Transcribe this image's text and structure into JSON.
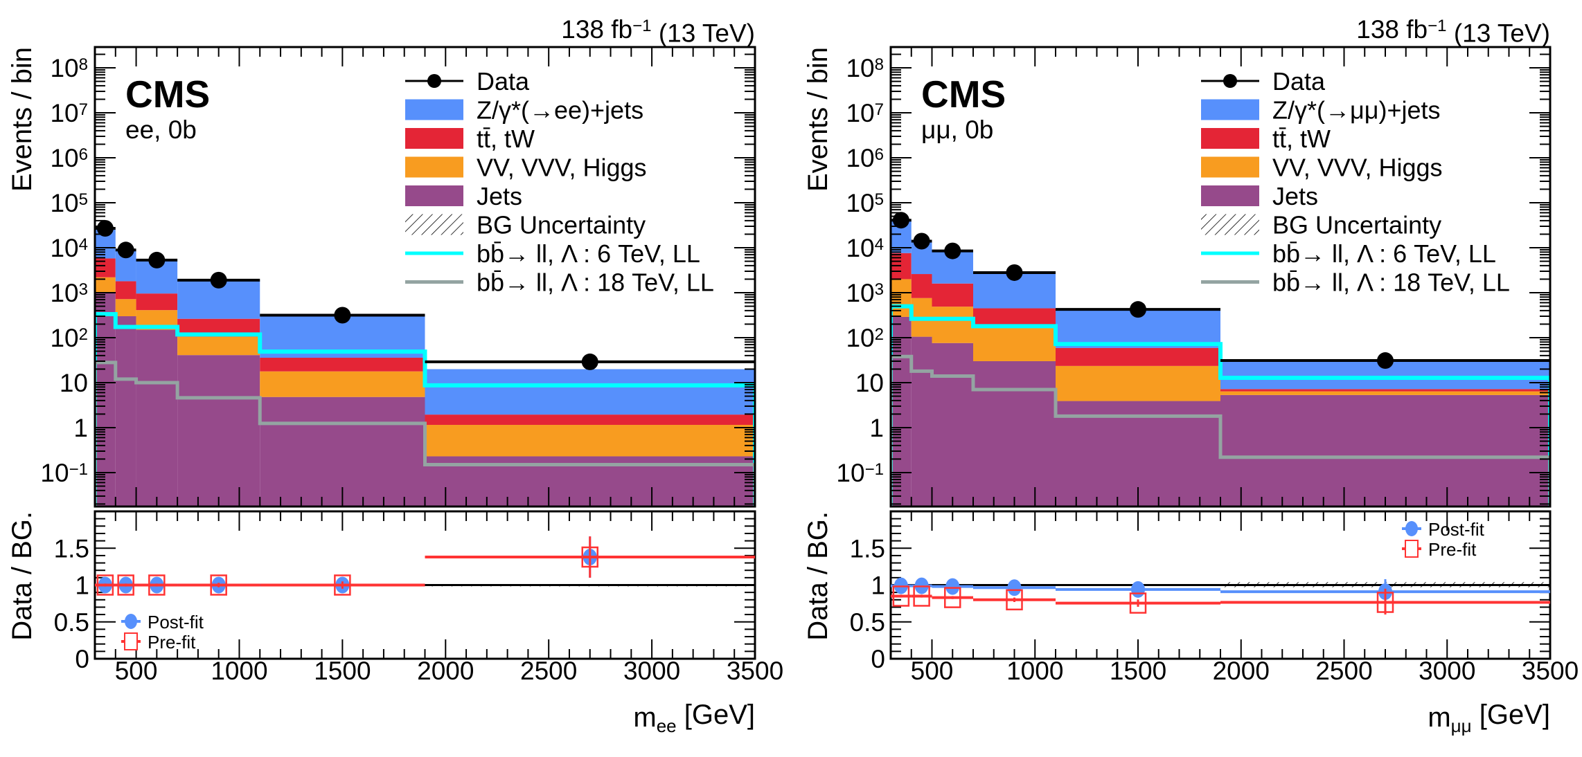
{
  "chart_data": [
    {
      "type": "bar",
      "stacked": true,
      "panel": "ee",
      "lumi_label": "138 fb^{−1} (13 TeV)",
      "experiment": "CMS",
      "channel_label": "ee, 0b",
      "xlabel": "m_{ee} [GeV]",
      "ylabel": "Events / bin",
      "yscale": "log",
      "xlim": [
        300,
        3500
      ],
      "ylim": [
        0.0176,
        290000000
      ],
      "xticks": [
        500,
        1000,
        1500,
        2000,
        2500,
        3000,
        3500
      ],
      "xtick_labels": [
        "500",
        "1000",
        "1500",
        "2000",
        "2500",
        "3000",
        "3500"
      ],
      "yticks": [
        0.1,
        1,
        10,
        100,
        1000,
        10000,
        100000,
        1000000,
        10000000,
        100000000
      ],
      "ytick_labels": [
        "10^{−1}",
        "1",
        "10",
        "10^{2}",
        "10^{3}",
        "10^{4}",
        "10^{5}",
        "10^{6}",
        "10^{7}",
        "10^{8}"
      ],
      "bin_edges": [
        300,
        400,
        500,
        700,
        1100,
        1900,
        3500
      ],
      "legend_position": "top-right",
      "series": [
        {
          "name": "Jets",
          "color": "#964a8b",
          "values": [
            1000,
            300,
            150,
            41,
            4.8,
            0.23
          ]
        },
        {
          "name": "VV, VVV, Higgs",
          "color": "#f89c20",
          "values": [
            1200,
            420,
            260,
            64,
            13,
            0.92
          ]
        },
        {
          "name": "tt̄, tW",
          "color": "#e42536",
          "values": [
            3600,
            1080,
            550,
            158,
            18,
            0.8
          ]
        },
        {
          "name": "Z/γ*(→ee)+jets",
          "color": "#5790fc",
          "values": [
            20200,
            6700,
            4540,
            1640,
            284,
            18
          ]
        }
      ],
      "data": {
        "name": "Data",
        "color": "#000000",
        "values": [
          27000,
          8900,
          5300,
          1900,
          316,
          29
        ]
      },
      "uncertainty": {
        "name": "BG Uncertainty"
      },
      "signals": [
        {
          "name": "bb̄→ ll,   Λ : 6 TeV, LL",
          "color": "#00ffff",
          "values": [
            333,
            173,
            173,
            118,
            49,
            8.7
          ]
        },
        {
          "name": "bb̄→ ll,   Λ : 18 TeV, LL",
          "color": "#94a4a2",
          "values": [
            28,
            12,
            10,
            4.6,
            1.24,
            0.15
          ]
        }
      ],
      "ratio": {
        "ylabel": "Data / BG.",
        "ylim": [
          0,
          2
        ],
        "yticks": [
          0,
          0.5,
          1,
          1.5
        ],
        "ytick_labels": [
          "0",
          "0.5",
          "1",
          "1.5"
        ],
        "legend_position": "bottom-left",
        "post_fit": {
          "name": "Post-fit",
          "color": "#5790fc",
          "values": [
            1.0,
            1.0,
            1.0,
            1.0,
            1.0,
            1.38
          ],
          "err_lo": [
            0.02,
            0.02,
            0.02,
            0.03,
            0.05,
            0.28
          ],
          "err_hi": [
            0.02,
            0.02,
            0.02,
            0.03,
            0.05,
            0.28
          ]
        },
        "pre_fit": {
          "name": "Pre-fit",
          "color": "#ff3333",
          "values": [
            1.0,
            1.0,
            1.0,
            1.0,
            1.0,
            1.38
          ],
          "err_lo": [
            0.02,
            0.02,
            0.02,
            0.03,
            0.05,
            0.28
          ],
          "err_hi": [
            0.02,
            0.02,
            0.02,
            0.03,
            0.05,
            0.28
          ]
        },
        "uncertainty_band": {
          "lo": [
            1,
            1,
            1,
            1,
            1,
            0.99
          ],
          "hi": [
            1,
            1,
            1,
            1,
            1,
            1.01
          ]
        }
      }
    },
    {
      "type": "bar",
      "stacked": true,
      "panel": "mumu",
      "lumi_label": "138 fb^{−1} (13 TeV)",
      "experiment": "CMS",
      "channel_label": "μμ, 0b",
      "xlabel": "m_{μμ} [GeV]",
      "ylabel": "Events / bin",
      "yscale": "log",
      "xlim": [
        300,
        3500
      ],
      "ylim": [
        0.0176,
        290000000
      ],
      "xticks": [
        500,
        1000,
        1500,
        2000,
        2500,
        3000,
        3500
      ],
      "xtick_labels": [
        "500",
        "1000",
        "1500",
        "2000",
        "2500",
        "3000",
        "3500"
      ],
      "yticks": [
        0.1,
        1,
        10,
        100,
        1000,
        10000,
        100000,
        1000000,
        10000000,
        100000000
      ],
      "ytick_labels": [
        "10^{−1}",
        "1",
        "10",
        "10^{2}",
        "10^{3}",
        "10^{4}",
        "10^{5}",
        "10^{6}",
        "10^{7}",
        "10^{8}"
      ],
      "bin_edges": [
        300,
        400,
        500,
        700,
        1100,
        1900,
        3500
      ],
      "legend_position": "top-right",
      "series": [
        {
          "name": "Jets",
          "color": "#964a8b",
          "values": [
            290,
            105,
            76,
            30,
            3.9,
            5.3
          ]
        },
        {
          "name": "VV, VVV, Higgs",
          "color": "#f89c20",
          "values": [
            1710,
            655,
            414,
            150,
            19.6,
            1.1
          ]
        },
        {
          "name": "tt̄, tW",
          "color": "#e42536",
          "values": [
            5600,
            1840,
            1110,
            270,
            35.5,
            0.8
          ]
        },
        {
          "name": "Z/γ*(→μμ)+jets",
          "color": "#5790fc",
          "values": [
            32400,
            11400,
            6900,
            2350,
            361,
            22.8
          ]
        }
      ],
      "data": {
        "name": "Data",
        "color": "#000000",
        "values": [
          41000,
          14000,
          8500,
          2800,
          425,
          31
        ]
      },
      "uncertainty": {
        "name": "BG Uncertainty"
      },
      "signals": [
        {
          "name": "bb̄→ ll,   Λ : 6 TeV, LL",
          "color": "#00ffff",
          "values": [
            500,
            263,
            263,
            180,
            72,
            12.8
          ]
        },
        {
          "name": "bb̄→ ll,   Λ : 18 TeV, LL",
          "color": "#94a4a2",
          "values": [
            38,
            18,
            14,
            7,
            1.8,
            0.22
          ]
        }
      ],
      "ratio": {
        "ylabel": "Data / BG.",
        "ylim": [
          0,
          2
        ],
        "yticks": [
          0,
          0.5,
          1,
          1.5
        ],
        "ytick_labels": [
          "0",
          "0.5",
          "1",
          "1.5"
        ],
        "legend_position": "top-right",
        "post_fit": {
          "name": "Post-fit",
          "color": "#5790fc",
          "values": [
            0.99,
            0.99,
            0.98,
            0.965,
            0.94,
            0.91
          ],
          "err_lo": [
            0.02,
            0.02,
            0.02,
            0.03,
            0.05,
            0.14
          ],
          "err_hi": [
            0.02,
            0.02,
            0.02,
            0.03,
            0.05,
            0.17
          ]
        },
        "pre_fit": {
          "name": "Pre-fit",
          "color": "#ff3333",
          "values": [
            0.85,
            0.85,
            0.83,
            0.8,
            0.755,
            0.765
          ],
          "err_lo": [
            0.02,
            0.02,
            0.02,
            0.03,
            0.05,
            0.165
          ],
          "err_hi": [
            0.02,
            0.02,
            0.02,
            0.03,
            0.05,
            0.185
          ]
        },
        "uncertainty_band": {
          "lo": [
            1,
            1,
            1,
            1,
            1,
            0.97
          ],
          "hi": [
            1,
            1,
            1,
            1,
            1,
            1.04
          ]
        }
      }
    }
  ]
}
